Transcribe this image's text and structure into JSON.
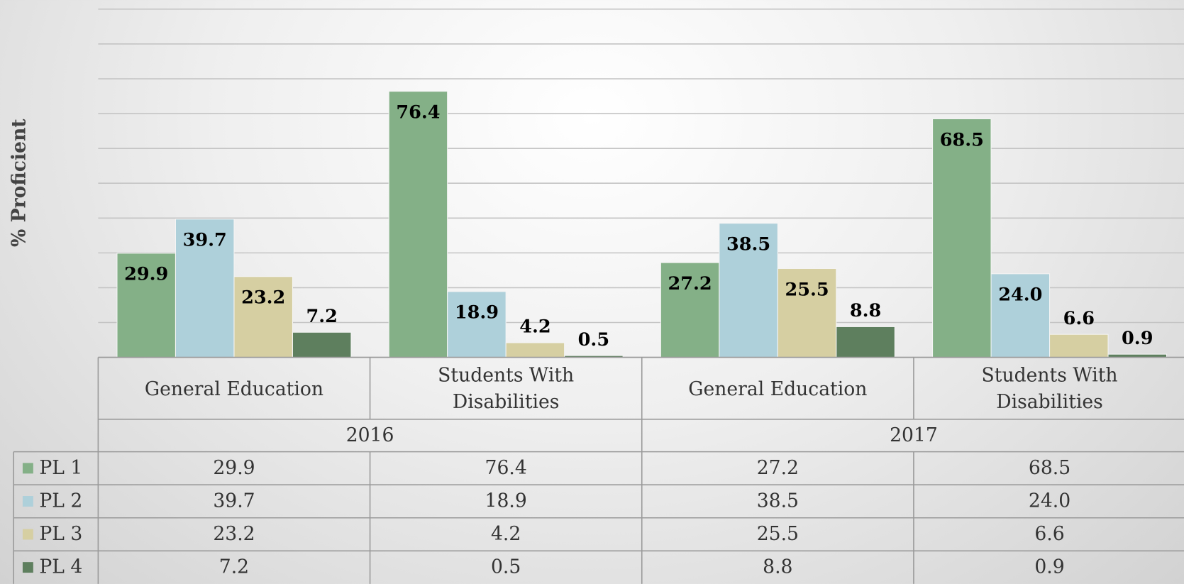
{
  "chart_data": {
    "type": "bar",
    "y_label": "% Proficient",
    "groups": [
      {
        "name": "2016",
        "categories": [
          "General Education",
          "Students With Disabilities"
        ]
      },
      {
        "name": "2017",
        "categories": [
          "General Education",
          "Students With Disabilities"
        ]
      }
    ],
    "series": [
      {
        "name": "PL 1",
        "color": "#84b087",
        "values": [
          29.9,
          76.4,
          27.2,
          68.5
        ],
        "value_labels": [
          "29.9",
          "76.4",
          "27.2",
          "68.5"
        ]
      },
      {
        "name": "PL 2",
        "color": "#aed0da",
        "values": [
          39.7,
          18.9,
          38.5,
          24.0
        ],
        "value_labels": [
          "39.7",
          "18.9",
          "38.5",
          "24.0"
        ]
      },
      {
        "name": "PL 3",
        "color": "#d6cfa2",
        "values": [
          23.2,
          4.2,
          25.5,
          6.6
        ],
        "value_labels": [
          "23.2",
          "4.2",
          "25.5",
          "6.6"
        ]
      },
      {
        "name": "PL 4",
        "color": "#5e7f5e",
        "values": [
          7.2,
          0.5,
          8.8,
          0.9
        ],
        "value_labels": [
          "7.2",
          "0.5",
          "8.8",
          "0.9"
        ]
      }
    ],
    "ylim": [
      0,
      100
    ],
    "yticks": [
      0,
      10,
      20,
      30,
      40,
      50,
      60,
      70,
      80,
      90,
      100
    ],
    "grid": true,
    "data_table": true
  }
}
